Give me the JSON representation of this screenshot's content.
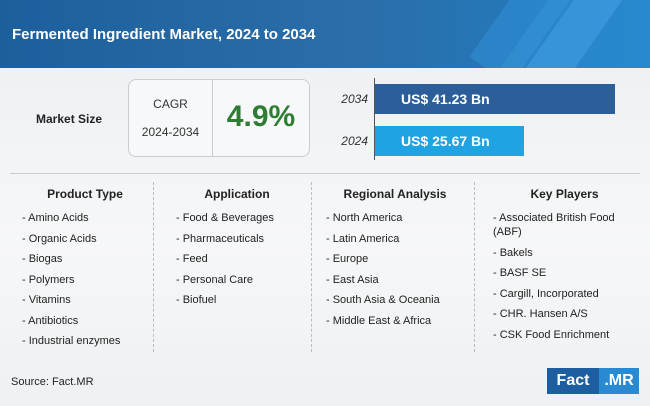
{
  "title": "Fermented Ingredient Market, 2024 to 2034",
  "market_size": {
    "label": "Market Size",
    "cagr_label": "CAGR",
    "cagr_years": "2024-2034",
    "cagr_value": "4.9%",
    "bars": [
      {
        "year": "2034",
        "value_label": "US$ 41.23 Bn",
        "value": 41.23,
        "color": "#2c5f9a"
      },
      {
        "year": "2024",
        "value_label": "US$ 25.67 Bn",
        "value": 25.67,
        "color": "#1fa3e2"
      }
    ]
  },
  "columns": [
    {
      "heading": "Product Type",
      "items": [
        "- Amino Acids",
        "- Organic Acids",
        "- Biogas",
        "- Polymers",
        "- Vitamins",
        "- Antibiotics",
        "- Industrial enzymes"
      ]
    },
    {
      "heading": "Application",
      "items": [
        "- Food & Beverages",
        "- Pharmaceuticals",
        "- Feed",
        "- Personal Care",
        "- Biofuel"
      ]
    },
    {
      "heading": "Regional Analysis",
      "items": [
        "- North America",
        "- Latin America",
        "- Europe",
        "- East Asia",
        "- South Asia & Oceania",
        "- Middle East & Africa"
      ]
    },
    {
      "heading": "Key Players",
      "items": [
        "- Associated British Food (ABF)",
        "- Bakels",
        "- BASF SE",
        "- Cargill, Incorporated",
        "- CHR. Hansen A/S",
        "- CSK Food Enrichment"
      ]
    }
  ],
  "source": "Source: Fact.MR",
  "logo": {
    "part1": "Fact",
    "part2": ".MR"
  }
}
